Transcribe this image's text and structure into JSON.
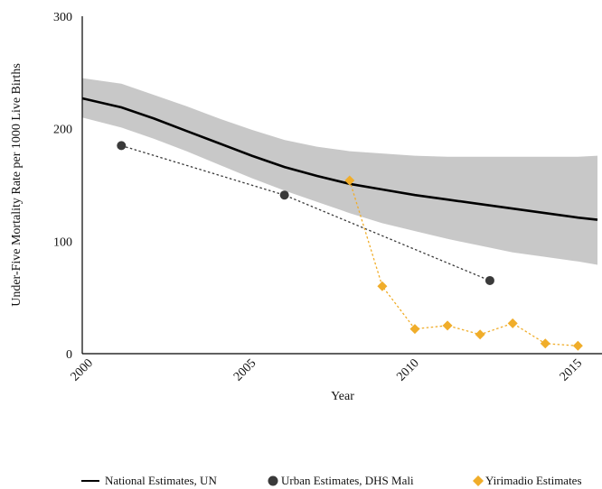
{
  "chart_data": {
    "type": "line",
    "xlabel": "Year",
    "ylabel": "Under-Five Mortality Rate per 1000 Live Births",
    "xlim": [
      1999.8,
      2015.6
    ],
    "ylim": [
      0,
      300
    ],
    "x_ticks": [
      2000,
      2005,
      2010,
      2015
    ],
    "x_tick_labels": [
      "2000",
      "2005",
      "2010",
      "2015"
    ],
    "y_ticks": [
      0,
      100,
      200,
      300
    ],
    "y_tick_labels": [
      "0",
      "100",
      "200",
      "300"
    ],
    "grid": false,
    "legend_position": "bottom",
    "series": [
      {
        "name": "National Estimates, UN",
        "style": "solid-line",
        "color": "#000000",
        "x": [
          1999.8,
          2001,
          2002,
          2003,
          2004,
          2005,
          2006,
          2007,
          2008,
          2009,
          2010,
          2011,
          2012,
          2013,
          2014,
          2015,
          2015.6
        ],
        "y": [
          227,
          219,
          209,
          198,
          187,
          176,
          166,
          158,
          151,
          146,
          141,
          137,
          133,
          129,
          125,
          121,
          119
        ],
        "band_upper": [
          245,
          240,
          230,
          220,
          209,
          199,
          190,
          184,
          180,
          178,
          176,
          175,
          175,
          175,
          175,
          175,
          176
        ],
        "band_lower": [
          210,
          201,
          191,
          180,
          168,
          156,
          145,
          135,
          125,
          116,
          109,
          102,
          96,
          90,
          86,
          82,
          79
        ],
        "band_color": "#c8c8c8"
      },
      {
        "name": "Urban Estimates, DHS Mali",
        "style": "dotted-line-circles",
        "color": "#3a3a3a",
        "x": [
          2001,
          2006,
          2012.3
        ],
        "y": [
          185,
          141,
          65
        ]
      },
      {
        "name": "Yirimadio Estimates",
        "style": "dotted-line-diamonds",
        "color": "#f0ad2a",
        "x": [
          2008,
          2009,
          2010,
          2011,
          2012,
          2013,
          2014,
          2015
        ],
        "y": [
          154,
          60,
          22,
          25,
          17,
          27,
          9,
          7
        ]
      }
    ]
  }
}
